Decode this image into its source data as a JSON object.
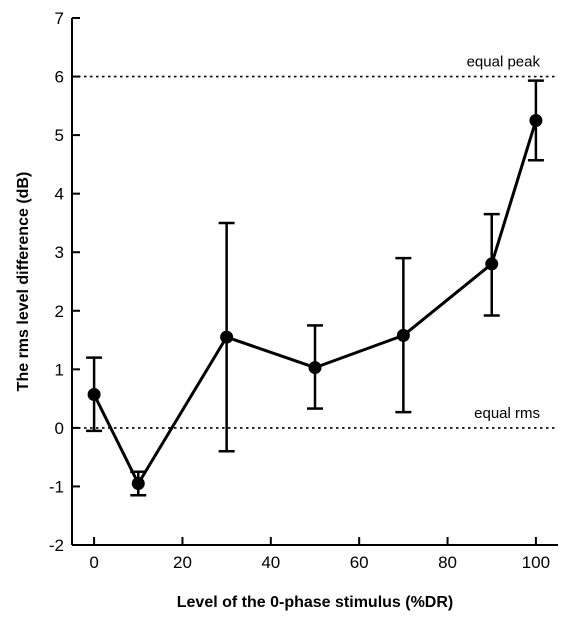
{
  "chart_data": {
    "type": "line",
    "title": "",
    "xlabel": "Level of the 0-phase stimulus (%DR)",
    "ylabel": "The rms level difference (dB)",
    "xlim": [
      -5,
      105
    ],
    "ylim": [
      -2,
      7
    ],
    "xticks": [
      0,
      20,
      40,
      60,
      80,
      100
    ],
    "yticks": [
      -2,
      -1,
      0,
      1,
      2,
      3,
      4,
      5,
      6,
      7
    ],
    "grid": false,
    "series": [
      {
        "x": [
          0,
          10,
          30,
          50,
          70,
          90,
          100
        ],
        "y": [
          0.57,
          -0.95,
          1.55,
          1.03,
          1.58,
          2.8,
          5.25
        ],
        "err_low": [
          -0.05,
          -1.15,
          -0.4,
          0.33,
          0.27,
          1.92,
          4.57
        ],
        "err_high": [
          1.2,
          -0.75,
          3.5,
          1.75,
          2.9,
          3.65,
          5.93
        ],
        "color": "#000000"
      }
    ],
    "reference_lines": [
      {
        "y": 6,
        "label": "equal peak",
        "style": "dotted"
      },
      {
        "y": 0,
        "label": "equal rms",
        "style": "dotted"
      }
    ]
  }
}
